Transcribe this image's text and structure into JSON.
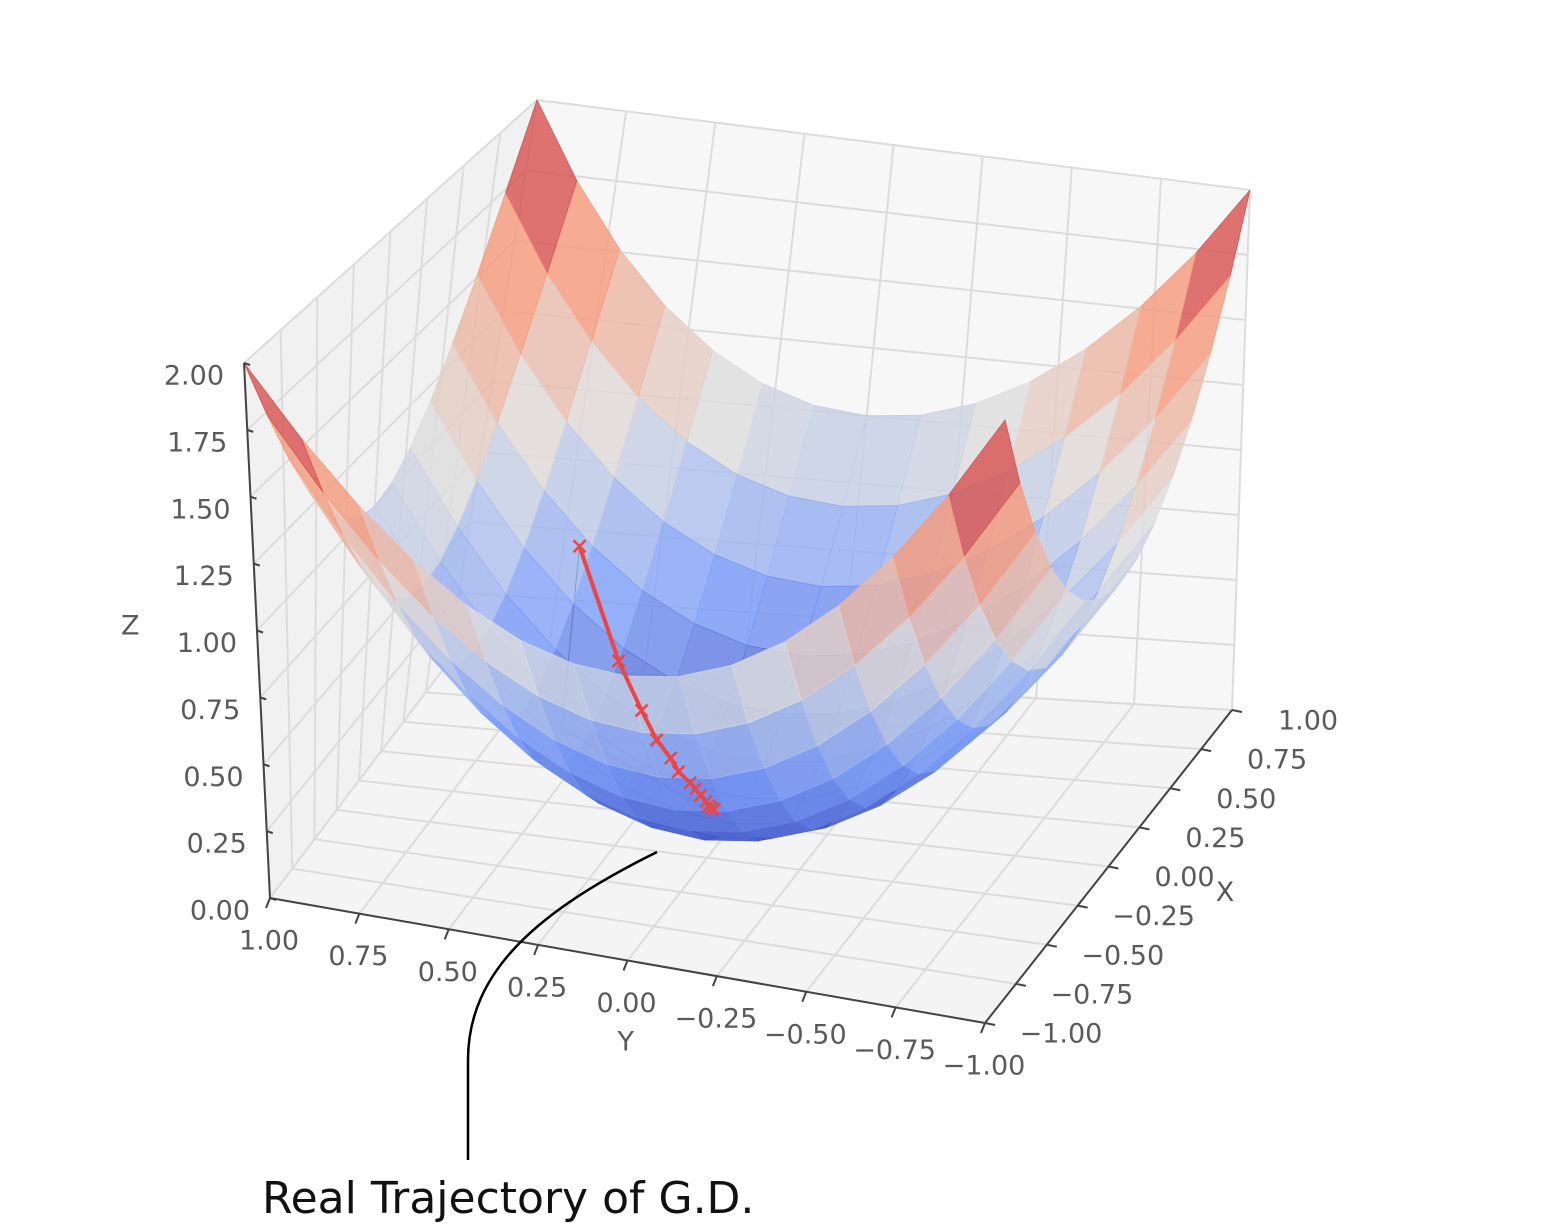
{
  "chart_data": {
    "type": "surface3d",
    "surface_function": "z = x^2 + y^2",
    "colormap": "coolwarm",
    "grid": true,
    "x_axis": {
      "label": "X",
      "range": [
        -1.0,
        1.0
      ],
      "ticks": [
        "−1.00",
        "−0.75",
        "−0.50",
        "−0.25",
        "0.00",
        "0.25",
        "0.50",
        "0.75",
        "1.00"
      ]
    },
    "y_axis": {
      "label": "Y",
      "range": [
        -1.0,
        1.0
      ],
      "ticks": [
        "1.00",
        "0.75",
        "0.50",
        "0.25",
        "0.00",
        "−0.25",
        "−0.50",
        "−0.75",
        "−1.00"
      ]
    },
    "z_axis": {
      "label": "Z",
      "range": [
        0.0,
        2.0
      ],
      "ticks": [
        "0.00",
        "0.25",
        "0.50",
        "0.75",
        "1.00",
        "1.25",
        "1.50",
        "1.75",
        "2.00"
      ]
    },
    "series": [
      {
        "type": "line3d",
        "marker": "x",
        "color": "#ee4444",
        "x": [
          0.55,
          0.39,
          0.31,
          0.25,
          0.21,
          0.18,
          0.15,
          0.13,
          0.11,
          0.09,
          0.08,
          0.07,
          0.06
        ],
        "y": [
          0.6,
          0.43,
          0.34,
          0.28,
          0.23,
          0.2,
          0.16,
          0.14,
          0.12,
          0.1,
          0.09,
          0.08,
          0.07
        ],
        "z": [
          0.66,
          0.34,
          0.21,
          0.14,
          0.1,
          0.07,
          0.05,
          0.04,
          0.03,
          0.02,
          0.01,
          0.01,
          0.01
        ]
      },
      {
        "type": "line3d",
        "color": "#e85d72",
        "x": [
          0.55,
          0.06
        ],
        "y": [
          0.6,
          0.07
        ],
        "z": [
          0.0,
          0.0
        ]
      }
    ],
    "annotation": "Real Trajectory of G.D."
  }
}
